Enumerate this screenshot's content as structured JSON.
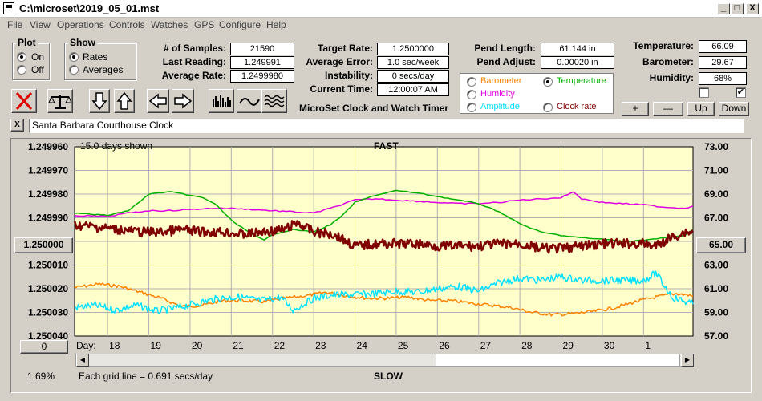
{
  "window": {
    "title": "C:\\microset\\2019_05_01.mst",
    "minimize": "_",
    "maximize": "□",
    "close": "X"
  },
  "menu": [
    "File",
    "View",
    "Operations",
    "Controls",
    "Watches",
    "GPS",
    "Configure",
    "Help"
  ],
  "plot_group": {
    "title": "Plot",
    "options": [
      "On",
      "Off"
    ],
    "selected": "On"
  },
  "show_group": {
    "title": "Show",
    "options": [
      "Rates",
      "Averages"
    ],
    "selected": "Rates"
  },
  "stats": {
    "samples_label": "# of Samples:",
    "samples": "21590",
    "last_label": "Last Reading:",
    "last": "1.249991",
    "avg_label": "Average Rate:",
    "avg": "1.2499980",
    "target_label": "Target Rate:",
    "target": "1.2500000",
    "avgerr_label": "Average Error:",
    "avgerr": "1.0 sec/week",
    "instab_label": "Instability:",
    "instab": "0 secs/day",
    "time_label": "Current Time:",
    "time": "12:00:07 AM",
    "pendlen_label": "Pend Length:",
    "pendlen": "61.144 in",
    "pendadj_label": "Pend Adjust:",
    "pendadj": "0.00020 in",
    "temp_label": "Temperature:",
    "temp": "66.09",
    "baro_label": "Barometer:",
    "baro": "29.67",
    "hum_label": "Humidity:",
    "hum": "68%"
  },
  "app_subtitle": "MicroSet Clock and Watch Timer",
  "legend": {
    "items": [
      {
        "label": "Barometer",
        "color": "#ff8000",
        "selected": false
      },
      {
        "label": "Temperature",
        "color": "#00b000",
        "selected": true
      },
      {
        "label": "Humidity",
        "color": "#e000e0",
        "selected": false
      },
      {
        "label": "Amplitude",
        "color": "#00e0ff",
        "selected": false
      },
      {
        "label": "Clock rate",
        "color": "#800000",
        "selected": false
      }
    ]
  },
  "small_buttons": [
    "+",
    "—",
    "Up",
    "Down"
  ],
  "checkboxes": [
    false,
    true
  ],
  "clock_name": "Santa Barbara Courthouse Clock",
  "close_x": "X",
  "chart_header": {
    "left": "15.0 days shown",
    "center": "FAST"
  },
  "chart_footer": {
    "left": "Each grid line = 0.691 secs/day",
    "center": "SLOW",
    "percent": "1.69%",
    "day_label": "Day:"
  },
  "left_button": "1.250000",
  "right_button": "65.00",
  "zero_button": "0",
  "chart_data": {
    "type": "line",
    "x_ticks": [
      "18",
      "19",
      "20",
      "21",
      "22",
      "23",
      "24",
      "25",
      "26",
      "27",
      "28",
      "29",
      "30",
      "1"
    ],
    "y_left_ticks": [
      "1.249960",
      "1.249970",
      "1.249980",
      "1.249990",
      "1.250000",
      "1.250010",
      "1.250020",
      "1.250030",
      "1.250040"
    ],
    "y_right_ticks": [
      "73.00",
      "71.00",
      "69.00",
      "67.00",
      "65.00",
      "63.00",
      "61.00",
      "59.00",
      "57.00"
    ],
    "y_left_range": [
      1.24996,
      1.25004
    ],
    "y_right_range": [
      57,
      73
    ],
    "x_range": [
      17.2,
      32.2
    ],
    "series": [
      {
        "name": "Humidity",
        "color": "#e000e0",
        "x": [
          17.2,
          18.0,
          18.5,
          19.0,
          19.5,
          20.0,
          20.5,
          21.0,
          21.5,
          22.0,
          22.5,
          23.0,
          23.5,
          24.0,
          24.5,
          25.0,
          25.5,
          26.0,
          26.5,
          27.0,
          27.5,
          28.0,
          28.5,
          29.0,
          29.3,
          29.5,
          30.0,
          30.5,
          31.0,
          31.5,
          32.0,
          32.2
        ],
        "y": [
          67.2,
          67.1,
          67.4,
          67.6,
          67.6,
          67.7,
          67.8,
          67.8,
          67.7,
          67.6,
          67.5,
          67.4,
          67.9,
          68.5,
          68.6,
          68.5,
          68.4,
          68.3,
          68.2,
          68.2,
          68.3,
          68.5,
          68.6,
          68.7,
          69.2,
          68.6,
          68.3,
          68.2,
          68.1,
          67.9,
          67.8,
          68.0
        ]
      },
      {
        "name": "Temperature",
        "color": "#00b000",
        "x": [
          17.2,
          17.6,
          18.0,
          18.5,
          18.8,
          19.0,
          19.5,
          20.0,
          20.3,
          20.6,
          21.0,
          21.5,
          21.8,
          22.0,
          22.5,
          23.0,
          23.4,
          23.7,
          24.0,
          24.5,
          25.0,
          25.5,
          26.0,
          26.5,
          27.0,
          27.5,
          28.0,
          28.5,
          29.0,
          29.5,
          30.0,
          30.5,
          31.0,
          31.5,
          32.0,
          32.2
        ],
        "y": [
          67.4,
          67.3,
          67.2,
          67.6,
          68.4,
          69.0,
          69.2,
          68.9,
          68.7,
          68.2,
          66.8,
          65.6,
          65.1,
          65.6,
          66.0,
          65.8,
          66.4,
          67.2,
          68.3,
          68.9,
          69.3,
          69.1,
          68.8,
          68.5,
          68.2,
          67.5,
          66.5,
          65.8,
          65.5,
          65.3,
          65.2,
          65.0,
          65.1,
          65.3,
          65.5,
          66.0
        ]
      },
      {
        "name": "Clock rate",
        "color": "#800000",
        "x": [
          17.2,
          17.8,
          18.3,
          18.8,
          19.3,
          19.8,
          20.3,
          20.8,
          21.3,
          21.8,
          22.3,
          22.6,
          23.0,
          23.5,
          24.0,
          24.5,
          25.0,
          25.5,
          26.0,
          26.5,
          27.0,
          27.5,
          28.0,
          28.5,
          29.0,
          29.5,
          30.0,
          30.5,
          31.0,
          31.3,
          31.6,
          32.0,
          32.2
        ],
        "y": [
          1.249993,
          1.249994,
          1.249995,
          1.249996,
          1.249996,
          1.249995,
          1.249996,
          1.249996,
          1.249997,
          1.249996,
          1.249995,
          1.249992,
          1.249996,
          1.249997,
          1.250002,
          1.250001,
          1.250001,
          1.250001,
          1.250002,
          1.250002,
          1.250002,
          1.250001,
          1.250001,
          1.250003,
          1.250003,
          1.250002,
          1.250001,
          1.250001,
          1.250001,
          1.250002,
          1.249999,
          1.249996,
          1.249996
        ]
      },
      {
        "name": "Barometer",
        "color": "#ff8000",
        "x": [
          17.2,
          17.8,
          18.3,
          18.8,
          19.3,
          19.8,
          20.3,
          20.8,
          21.3,
          21.8,
          22.3,
          22.8,
          23.3,
          23.8,
          24.3,
          24.8,
          25.3,
          25.8,
          26.3,
          26.8,
          27.3,
          27.8,
          28.3,
          28.8,
          29.3,
          29.8,
          30.3,
          30.8,
          31.3,
          31.8,
          32.2
        ],
        "y": [
          61.1,
          61.4,
          61.2,
          60.7,
          60.2,
          59.5,
          59.6,
          60.0,
          60.0,
          59.9,
          60.2,
          60.4,
          60.7,
          60.4,
          60.2,
          60.2,
          60.3,
          60.0,
          60.0,
          59.8,
          59.6,
          59.4,
          59.0,
          58.8,
          58.9,
          59.1,
          59.4,
          59.9,
          60.3,
          60.6,
          60.4
        ]
      },
      {
        "name": "Amplitude",
        "color": "#00e0ff",
        "x": [
          17.2,
          17.7,
          18.2,
          18.7,
          19.2,
          19.7,
          20.2,
          20.7,
          21.2,
          21.7,
          22.2,
          22.5,
          23.0,
          23.5,
          24.0,
          24.5,
          25.0,
          25.5,
          26.0,
          26.5,
          27.0,
          27.5,
          28.0,
          28.5,
          29.0,
          29.5,
          30.0,
          30.5,
          31.0,
          31.3,
          31.7,
          32.2
        ],
        "y": [
          59.4,
          59.6,
          59.2,
          59.6,
          59.1,
          59.4,
          59.8,
          60.2,
          60.3,
          60.0,
          60.3,
          59.2,
          60.2,
          60.5,
          60.5,
          60.6,
          60.8,
          60.7,
          61.0,
          61.2,
          60.8,
          61.5,
          61.9,
          61.7,
          62.0,
          61.7,
          61.7,
          61.7,
          61.7,
          62.3,
          60.3,
          59.7
        ]
      }
    ]
  }
}
